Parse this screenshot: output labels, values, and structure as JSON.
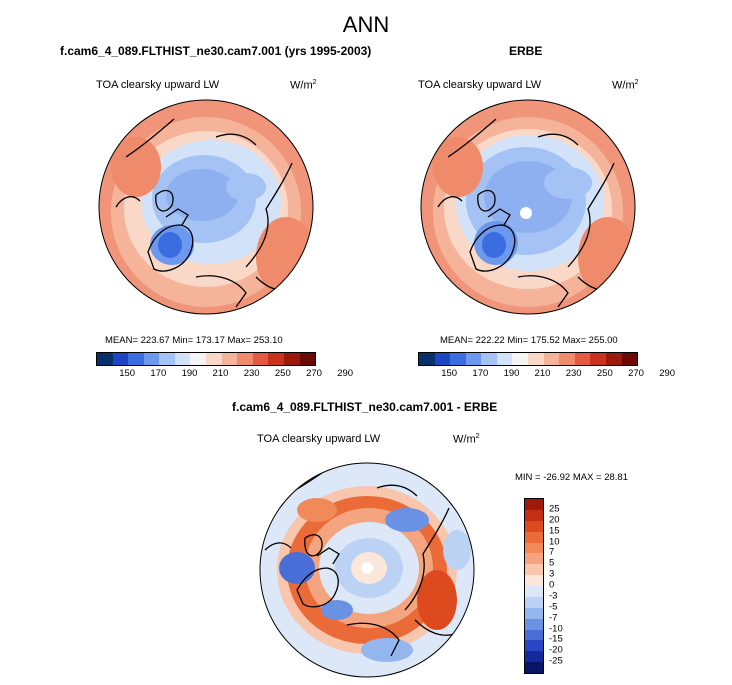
{
  "main_title": "ANN",
  "panels": [
    {
      "title": "f.cam6_4_089.FLTHIST_ne30.cam7.001 (yrs 1995-2003)",
      "variable": "TOA clearsky upward LW",
      "units_base": "W/m",
      "units_exp": "2",
      "stats": "MEAN= 223.67   Min= 173.17   Max= 253.10",
      "colorbar_ticks": [
        "150",
        "170",
        "190",
        "210",
        "230",
        "250",
        "270",
        "290"
      ]
    },
    {
      "title": "ERBE",
      "variable": "TOA clearsky upward LW",
      "units_base": "W/m",
      "units_exp": "2",
      "stats": "MEAN= 222.22   Min= 175.52   Max= 255.00",
      "colorbar_ticks": [
        "150",
        "170",
        "190",
        "210",
        "230",
        "250",
        "270",
        "290"
      ]
    },
    {
      "title": "f.cam6_4_089.FLTHIST_ne30.cam7.001 - ERBE",
      "variable": "TOA clearsky upward LW",
      "units_base": "W/m",
      "units_exp": "2",
      "stats": "MIN = -26.92 MAX =  28.81",
      "colorbar_ticks": [
        "25",
        "20",
        "15",
        "10",
        "7",
        "5",
        "3",
        "0",
        "-3",
        "-5",
        "-7",
        "-10",
        "-15",
        "-20",
        "-25"
      ]
    }
  ],
  "colors": {
    "abs_scale": [
      "#08306b",
      "#1c46c4",
      "#3a6ee0",
      "#6c98ee",
      "#a4c2f4",
      "#d2e2f8",
      "#f4f4f4",
      "#f9d8c8",
      "#f5b49a",
      "#ef8a6a",
      "#e35a3e",
      "#c8321e",
      "#9a1a0c",
      "#6b0a04"
    ],
    "diff_scale": [
      "#9e1a0a",
      "#c42e12",
      "#dc4a1e",
      "#ea6a38",
      "#f08a58",
      "#f4a47e",
      "#f8c6ac",
      "#fbe6da",
      "#dce8f8",
      "#bcd2f4",
      "#94b6ee",
      "#6a92e4",
      "#4a6ed8",
      "#2a46c4",
      "#142a9a",
      "#0a1466"
    ],
    "land_outline": "#000000",
    "polar_hole": "#ffffff"
  }
}
